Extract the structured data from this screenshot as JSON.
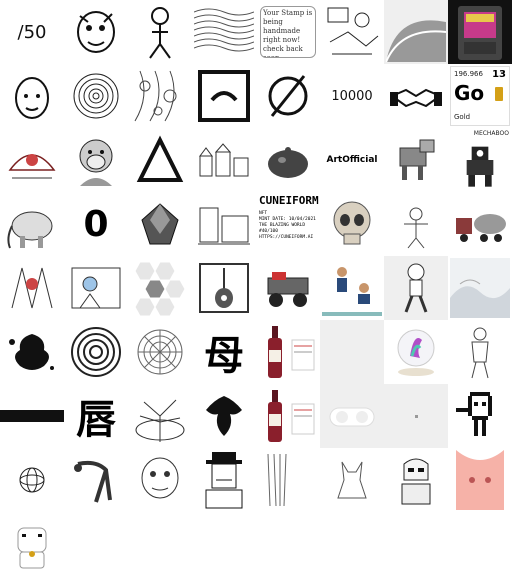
{
  "gallery": {
    "tiles": {
      "t01": "/50",
      "t11": "10000",
      "t14_value": "196.966",
      "t14_number": "13",
      "t14_symbol": "Go",
      "t14_name": "Gold",
      "t20": "ArtOfficial",
      "t23": "MECHABOO",
      "t29_title": "CUNEIFORM",
      "t29_lines": "NFT\nMINT DATE: 10/04/2021\nTHE BLAZING WORLD\n#40/100\nHTTPS://CUNEIFORM.AI",
      "t29_line1": "NFT",
      "t29_line2": "MINT DATE: 10/04/2021",
      "t29_line3": "THE BLAZING WORLD",
      "t29_line4": "#40/100",
      "t29_line5": "HTTPS://CUNEIFORM.AI",
      "t27": "0",
      "t45_kanji": "母",
      "t58_kanji": "唇",
      "t03_note": "Your Stamp is being handmade right now! check back soon",
      "t20b": "ArtOfficial"
    },
    "colors": {
      "accent_gold": "#d4a017",
      "dark": "#111111",
      "wine": "#8a1f2c",
      "grey": "#efefef"
    }
  }
}
